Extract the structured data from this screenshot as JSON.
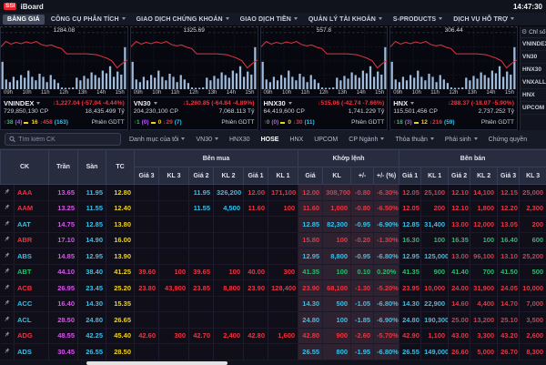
{
  "topbar": {
    "logo": "SSI",
    "app": "iBoard",
    "time": "14:47:30"
  },
  "menu": {
    "items": [
      {
        "label": "BẢNG GIÁ",
        "active": true,
        "caret": false
      },
      {
        "label": "CÔNG CỤ PHÂN TÍCH",
        "caret": true
      },
      {
        "label": "GIAO DỊCH CHỨNG KHOÁN",
        "caret": true
      },
      {
        "label": "GIAO DỊCH TIỀN",
        "caret": true
      },
      {
        "label": "QUẢN LÝ TÀI KHOẢN",
        "caret": true
      },
      {
        "label": "S-PRODUCTS",
        "caret": true
      },
      {
        "label": "DỊCH VỤ HỖ TRỢ",
        "caret": true
      }
    ]
  },
  "chart_axis": [
    "09h",
    "10h",
    "11h",
    "12h",
    "13h",
    "14h",
    "15h"
  ],
  "sparkline": {
    "line": [
      32,
      20,
      26,
      22,
      25,
      21,
      24,
      20,
      27,
      30,
      28,
      33,
      36,
      48,
      48,
      48,
      48,
      48,
      49,
      50,
      54,
      58,
      64,
      80,
      70,
      62
    ],
    "vols": [
      62,
      22,
      16,
      28,
      20,
      32,
      26,
      42,
      28,
      20,
      35,
      28,
      16,
      32,
      22,
      14,
      4,
      3,
      3,
      4,
      26,
      20,
      30,
      24,
      38,
      32,
      26,
      42,
      36,
      52,
      28,
      40,
      33,
      95
    ]
  },
  "charts": [
    {
      "name": "VNINDEX",
      "peak": "1284.08",
      "value": "1,227.04",
      "change": "(-57.04 -4.44%)",
      "volume": "729,850,130 CP",
      "turnover": "18,435.499 Tỷ",
      "up": "38",
      "up_ce": "(4)",
      "flat": "16",
      "down": "458",
      "down_fl": "(163)",
      "session": "Phiên GDTT"
    },
    {
      "name": "VN30",
      "peak": "1325.69",
      "value": "1,260.85",
      "change": "(-64.84 -4.89%)",
      "volume": "204,230,100 CP",
      "turnover": "7,068.113 Tỷ",
      "up": "1",
      "up_ce": "(0)",
      "flat": "0",
      "down": "29",
      "down_fl": "(7)",
      "session": "Phiên GDTT"
    },
    {
      "name": "HNX30",
      "peak": "557.8",
      "value": "515.06",
      "change": "(-42.74 -7.66%)",
      "volume": "64,419,600 CP",
      "turnover": "1,741.229 Tỷ",
      "up": "0",
      "up_ce": "(0)",
      "flat": "0",
      "down": "30",
      "down_fl": "(11)",
      "session": "Phiên GDTT"
    },
    {
      "name": "HNX",
      "peak": "306.44",
      "value": "288.37",
      "change": "(-18.07 -5.90%)",
      "volume": "115,501,456 CP",
      "turnover": "2,737.252 Tỷ",
      "up": "18",
      "up_ce": "(3)",
      "flat": "12",
      "down": "216",
      "down_fl": "(59)",
      "session": "Phiên GDTT"
    }
  ],
  "sidebar": {
    "header": "Chỉ số",
    "items": [
      "VNINDEX",
      "VN30",
      "HNX30",
      "VNXALL",
      "HNX",
      "UPCOM"
    ]
  },
  "tabs": {
    "search_placeholder": "Tìm kiếm CK",
    "items": [
      {
        "label": "Danh mục của tôi",
        "caret": true
      },
      {
        "label": "VN30",
        "caret": true
      },
      {
        "label": "HNX30"
      },
      {
        "label": "HOSE",
        "active": true
      },
      {
        "label": "HNX"
      },
      {
        "label": "UPCOM"
      },
      {
        "label": "CP Ngành",
        "caret": true
      },
      {
        "label": "Thỏa thuận",
        "caret": true
      },
      {
        "label": "Phái sinh",
        "caret": true
      },
      {
        "label": "Chứng quyền"
      }
    ]
  },
  "table": {
    "groups": {
      "buy": "Bên mua",
      "match": "Khớp lệnh",
      "sell": "Bên bán"
    },
    "headers": {
      "ck": "CK",
      "ceil": "Trần",
      "floor": "Sàn",
      "ref": "TC",
      "bid": [
        "Giá 3",
        "KL 3",
        "Giá 2",
        "KL 2",
        "Giá 1",
        "KL 1"
      ],
      "match": [
        "Giá",
        "KL",
        "+/-",
        "+/- (%)"
      ],
      "ask": [
        "Giá 1",
        "KL 1",
        "Giá 2",
        "KL 2",
        "Giá 3",
        "KL 3"
      ]
    },
    "rows": [
      {
        "ck": "AAA",
        "ckc": "down",
        "ceil": "13.65",
        "floor": "11.95",
        "ref": "12.80",
        "cells": [
          [
            "",
            ""
          ],
          [
            "",
            ""
          ],
          [
            "11.95",
            "floor"
          ],
          [
            "326,200",
            "floor"
          ],
          [
            "12.00",
            "down"
          ],
          [
            "171,100",
            "down"
          ],
          [
            "12.00",
            "down"
          ],
          [
            "308,700",
            "down"
          ],
          [
            "-0.80",
            "down"
          ],
          [
            "-6.30%",
            "down"
          ],
          [
            "12.05",
            "down"
          ],
          [
            "25,100",
            "down"
          ],
          [
            "12.10",
            "down"
          ],
          [
            "14,100",
            "down"
          ],
          [
            "12.15",
            "down"
          ],
          [
            "25,000",
            "down"
          ]
        ]
      },
      {
        "ck": "AAM",
        "ckc": "down",
        "ceil": "13.25",
        "floor": "11.55",
        "ref": "12.40",
        "cells": [
          [
            "",
            ""
          ],
          [
            "",
            ""
          ],
          [
            "11.55",
            "floor"
          ],
          [
            "4,500",
            "floor"
          ],
          [
            "11.60",
            "down"
          ],
          [
            "100",
            "down"
          ],
          [
            "11.60",
            "down"
          ],
          [
            "1,000",
            "down"
          ],
          [
            "-0.80",
            "down"
          ],
          [
            "-6.50%",
            "down"
          ],
          [
            "12.05",
            "down"
          ],
          [
            "200",
            "down"
          ],
          [
            "12.10",
            "down"
          ],
          [
            "1,800",
            "down"
          ],
          [
            "12.20",
            "down"
          ],
          [
            "2,300",
            "down"
          ]
        ]
      },
      {
        "ck": "AAT",
        "ckc": "floor",
        "ceil": "14.75",
        "floor": "12.85",
        "ref": "13.80",
        "cells": [
          [
            "",
            ""
          ],
          [
            "",
            ""
          ],
          [
            "",
            ""
          ],
          [
            "",
            ""
          ],
          [
            "",
            ""
          ],
          [
            "",
            ""
          ],
          [
            "12.85",
            "floor"
          ],
          [
            "82,300",
            "floor"
          ],
          [
            "-0.95",
            "floor"
          ],
          [
            "-6.90%",
            "floor"
          ],
          [
            "12.85",
            "floor"
          ],
          [
            "31,400",
            "floor"
          ],
          [
            "13.00",
            "down"
          ],
          [
            "12,000",
            "down"
          ],
          [
            "13.05",
            "down"
          ],
          [
            "200",
            "down"
          ]
        ]
      },
      {
        "ck": "ABR",
        "ckc": "down",
        "ceil": "17.10",
        "floor": "14.90",
        "ref": "16.00",
        "cells": [
          [
            "",
            ""
          ],
          [
            "",
            ""
          ],
          [
            "",
            ""
          ],
          [
            "",
            ""
          ],
          [
            "",
            ""
          ],
          [
            "",
            ""
          ],
          [
            "15.80",
            "down"
          ],
          [
            "100",
            "down"
          ],
          [
            "-0.20",
            "down"
          ],
          [
            "-1.30%",
            "down"
          ],
          [
            "16.30",
            "up"
          ],
          [
            "100",
            "up"
          ],
          [
            "16.35",
            "up"
          ],
          [
            "100",
            "up"
          ],
          [
            "16.40",
            "up"
          ],
          [
            "600",
            "up"
          ]
        ]
      },
      {
        "ck": "ABS",
        "ckc": "floor",
        "ceil": "14.85",
        "floor": "12.95",
        "ref": "13.90",
        "cells": [
          [
            "",
            ""
          ],
          [
            "",
            ""
          ],
          [
            "",
            ""
          ],
          [
            "",
            ""
          ],
          [
            "",
            ""
          ],
          [
            "",
            ""
          ],
          [
            "12.95",
            "floor"
          ],
          [
            "8,800",
            "floor"
          ],
          [
            "-0.95",
            "floor"
          ],
          [
            "-6.80%",
            "floor"
          ],
          [
            "12.95",
            "floor"
          ],
          [
            "125,000",
            "floor"
          ],
          [
            "13.00",
            "down"
          ],
          [
            "96,100",
            "down"
          ],
          [
            "13.10",
            "down"
          ],
          [
            "25,200",
            "down"
          ]
        ]
      },
      {
        "ck": "ABT",
        "ckc": "up",
        "ceil": "44.10",
        "floor": "38.40",
        "ref": "41.25",
        "cells": [
          [
            "39.60",
            "down"
          ],
          [
            "100",
            "down"
          ],
          [
            "39.65",
            "down"
          ],
          [
            "100",
            "down"
          ],
          [
            "40.00",
            "down"
          ],
          [
            "300",
            "down"
          ],
          [
            "41.35",
            "up"
          ],
          [
            "100",
            "up"
          ],
          [
            "0.10",
            "up"
          ],
          [
            "0.20%",
            "up"
          ],
          [
            "41.35",
            "up"
          ],
          [
            "900",
            "up"
          ],
          [
            "41.40",
            "up"
          ],
          [
            "700",
            "up"
          ],
          [
            "41.50",
            "up"
          ],
          [
            "500",
            "up"
          ]
        ]
      },
      {
        "ck": "ACB",
        "ckc": "down",
        "ceil": "26.95",
        "floor": "23.45",
        "ref": "25.20",
        "cells": [
          [
            "23.80",
            "down"
          ],
          [
            "43,900",
            "down"
          ],
          [
            "23.85",
            "down"
          ],
          [
            "8,800",
            "down"
          ],
          [
            "23.90",
            "down"
          ],
          [
            "128,400",
            "down"
          ],
          [
            "23.90",
            "down"
          ],
          [
            "68,100",
            "down"
          ],
          [
            "-1.30",
            "down"
          ],
          [
            "-5.20%",
            "down"
          ],
          [
            "23.95",
            "down"
          ],
          [
            "10,000",
            "down"
          ],
          [
            "24.00",
            "down"
          ],
          [
            "31,900",
            "down"
          ],
          [
            "24.05",
            "down"
          ],
          [
            "10,000",
            "down"
          ]
        ]
      },
      {
        "ck": "ACC",
        "ckc": "floor",
        "ceil": "16.40",
        "floor": "14.30",
        "ref": "15.35",
        "cells": [
          [
            "",
            ""
          ],
          [
            "",
            ""
          ],
          [
            "",
            ""
          ],
          [
            "",
            ""
          ],
          [
            "",
            ""
          ],
          [
            "",
            ""
          ],
          [
            "14.30",
            "floor"
          ],
          [
            "500",
            "floor"
          ],
          [
            "-1.05",
            "floor"
          ],
          [
            "-6.80%",
            "floor"
          ],
          [
            "14.30",
            "floor"
          ],
          [
            "22,900",
            "floor"
          ],
          [
            "14.60",
            "down"
          ],
          [
            "4,400",
            "down"
          ],
          [
            "14.70",
            "down"
          ],
          [
            "7,000",
            "down"
          ]
        ]
      },
      {
        "ck": "ACL",
        "ckc": "floor",
        "ceil": "28.50",
        "floor": "24.80",
        "ref": "26.65",
        "cells": [
          [
            "",
            ""
          ],
          [
            "",
            ""
          ],
          [
            "",
            ""
          ],
          [
            "",
            ""
          ],
          [
            "",
            ""
          ],
          [
            "",
            ""
          ],
          [
            "24.80",
            "floor"
          ],
          [
            "100",
            "floor"
          ],
          [
            "-1.85",
            "floor"
          ],
          [
            "-6.90%",
            "floor"
          ],
          [
            "24.80",
            "floor"
          ],
          [
            "190,300",
            "floor"
          ],
          [
            "25.00",
            "down"
          ],
          [
            "13,200",
            "down"
          ],
          [
            "25.10",
            "down"
          ],
          [
            "3,500",
            "down"
          ]
        ]
      },
      {
        "ck": "ADG",
        "ckc": "down",
        "ceil": "48.55",
        "floor": "42.25",
        "ref": "45.40",
        "cells": [
          [
            "42.60",
            "down"
          ],
          [
            "300",
            "down"
          ],
          [
            "42.70",
            "down"
          ],
          [
            "2,400",
            "down"
          ],
          [
            "42.80",
            "down"
          ],
          [
            "1,600",
            "down"
          ],
          [
            "42.80",
            "down"
          ],
          [
            "900",
            "down"
          ],
          [
            "-2.60",
            "down"
          ],
          [
            "-5.70%",
            "down"
          ],
          [
            "42.90",
            "down"
          ],
          [
            "1,100",
            "down"
          ],
          [
            "43.00",
            "down"
          ],
          [
            "3,300",
            "down"
          ],
          [
            "43.20",
            "down"
          ],
          [
            "2,600",
            "down"
          ]
        ]
      },
      {
        "ck": "ADS",
        "ckc": "floor",
        "ceil": "30.45",
        "floor": "26.55",
        "ref": "28.50",
        "cells": [
          [
            "",
            ""
          ],
          [
            "",
            ""
          ],
          [
            "",
            ""
          ],
          [
            "",
            ""
          ],
          [
            "",
            ""
          ],
          [
            "",
            ""
          ],
          [
            "26.55",
            "floor"
          ],
          [
            "800",
            "floor"
          ],
          [
            "-1.95",
            "floor"
          ],
          [
            "-6.80%",
            "floor"
          ],
          [
            "26.55",
            "floor"
          ],
          [
            "149,000",
            "floor"
          ],
          [
            "26.60",
            "down"
          ],
          [
            "5,000",
            "down"
          ],
          [
            "26.70",
            "down"
          ],
          [
            "8,300",
            "down"
          ]
        ]
      }
    ]
  },
  "colors": {
    "up": "#21c06a",
    "down": "#f0323f",
    "ceil": "#d555e8",
    "floor": "#35c0ea",
    "ref": "#edd21f"
  }
}
